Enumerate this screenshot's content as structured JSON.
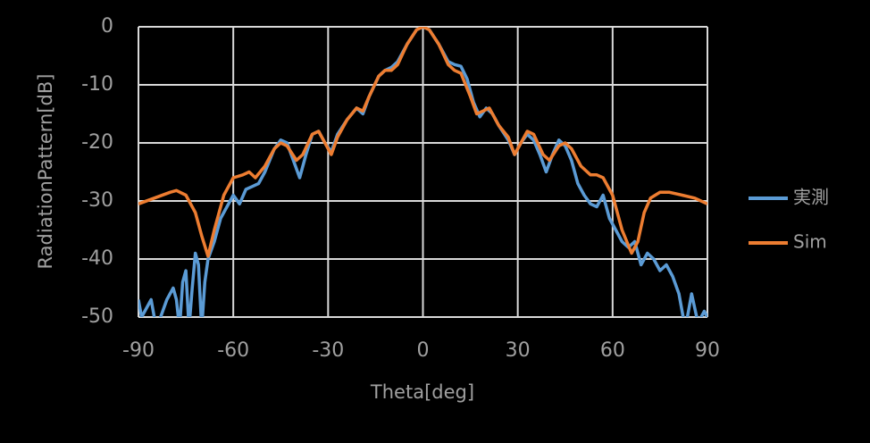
{
  "chart_data": {
    "type": "line",
    "x_label": "Theta[deg]",
    "y_label": "RadiationPattern[dB]",
    "xlim": [
      -90,
      90
    ],
    "xticks": [
      -90,
      -60,
      -30,
      0,
      30,
      60,
      90
    ],
    "ylim": [
      -50,
      0
    ],
    "yticks": [
      0,
      -10,
      -20,
      -30,
      -40,
      -50
    ],
    "grid": true,
    "legend": "right",
    "series": [
      {
        "name": "実測",
        "color": "#5b9bd5",
        "x": [
          -90,
          -89,
          -88,
          -86,
          -85,
          -84,
          -83,
          -81,
          -79,
          -78,
          -77,
          -76,
          -75,
          -74,
          -73,
          -72,
          -71,
          -70,
          -69,
          -68,
          -66,
          -64,
          -62,
          -60,
          -58,
          -56,
          -54,
          -52,
          -50,
          -47,
          -45,
          -43,
          -41,
          -39,
          -37,
          -35,
          -33,
          -31,
          -29,
          -27,
          -24,
          -21,
          -19,
          -17,
          -14,
          -12,
          -10,
          -8,
          -5,
          -2,
          0,
          2,
          5,
          8,
          10,
          12,
          14,
          16,
          18,
          20,
          22,
          24,
          27,
          29,
          31,
          33,
          35,
          37,
          39,
          41,
          43,
          45,
          47,
          49,
          51,
          53,
          55,
          57,
          59,
          61,
          63,
          65,
          67,
          69,
          71,
          73,
          75,
          77,
          79,
          81,
          83,
          85,
          87,
          89,
          90
        ],
        "values": [
          -47,
          -50,
          -49,
          -47,
          -50,
          -52,
          -50,
          -47,
          -45,
          -47,
          -52,
          -44,
          -42,
          -52,
          -45,
          -39,
          -41,
          -52,
          -44,
          -40,
          -37,
          -33,
          -31,
          -29,
          -30.5,
          -28,
          -27.5,
          -27,
          -25,
          -21,
          -19.5,
          -20,
          -23,
          -26,
          -22,
          -18.5,
          -18,
          -20,
          -21.5,
          -18.5,
          -16,
          -14,
          -15,
          -12,
          -8.5,
          -7.5,
          -7,
          -6,
          -3,
          -0.5,
          0,
          -0.5,
          -3,
          -6,
          -6.5,
          -6.8,
          -9,
          -13,
          -15.5,
          -14,
          -15,
          -17,
          -19.5,
          -22,
          -20,
          -18.5,
          -19.5,
          -22,
          -25,
          -22,
          -19.5,
          -20.5,
          -23,
          -27,
          -29,
          -30.5,
          -31,
          -29,
          -33,
          -35,
          -37,
          -38,
          -37,
          -41,
          -39,
          -40,
          -42,
          -41,
          -43,
          -46,
          -52,
          -46,
          -51,
          -49,
          -50
        ]
      },
      {
        "name": "Sim",
        "color": "#ed7d31",
        "x": [
          -90,
          -85,
          -80,
          -78,
          -75,
          -72,
          -70,
          -68,
          -66,
          -63,
          -60,
          -57,
          -55,
          -53,
          -50,
          -47,
          -45,
          -43,
          -40,
          -38,
          -35,
          -33,
          -31,
          -29,
          -27,
          -24,
          -21,
          -19,
          -17,
          -14,
          -12,
          -10,
          -8,
          -5,
          -2,
          0,
          2,
          5,
          8,
          10,
          12,
          15,
          17,
          19,
          21,
          24,
          27,
          29,
          31,
          33,
          35,
          38,
          40,
          43,
          45,
          47,
          50,
          53,
          55,
          57,
          60,
          63,
          66,
          68,
          70,
          72,
          75,
          78,
          82,
          86,
          90
        ],
        "values": [
          -30.5,
          -29.5,
          -28.5,
          -28.2,
          -29,
          -32,
          -36,
          -39.5,
          -35,
          -29,
          -26,
          -25.5,
          -25,
          -26,
          -24,
          -21,
          -20,
          -20.5,
          -23,
          -22,
          -18.5,
          -18,
          -20,
          -22,
          -19,
          -16,
          -14,
          -14.5,
          -12,
          -8.5,
          -7.5,
          -7.5,
          -6.5,
          -3,
          -0.5,
          0,
          -0.5,
          -3,
          -6.5,
          -7.5,
          -8,
          -12,
          -15,
          -14.5,
          -14,
          -17,
          -19,
          -22,
          -20,
          -18,
          -18.5,
          -22,
          -23,
          -20.5,
          -20,
          -21,
          -24,
          -25.5,
          -25.5,
          -26,
          -29,
          -35,
          -39,
          -37,
          -32,
          -29.5,
          -28.5,
          -28.5,
          -29,
          -29.5,
          -30.5
        ]
      }
    ]
  }
}
